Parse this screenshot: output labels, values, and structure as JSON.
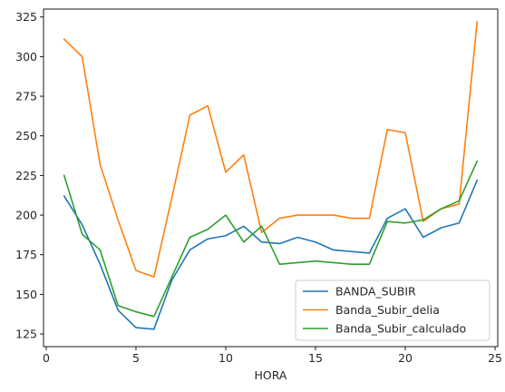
{
  "chart_data": {
    "type": "line",
    "xlabel": "HORA",
    "ylabel": "",
    "xlim": [
      -0.15,
      25.15
    ],
    "ylim": [
      117,
      330
    ],
    "xticks": [
      0,
      5,
      10,
      15,
      20,
      25
    ],
    "yticks": [
      125,
      150,
      175,
      200,
      225,
      250,
      275,
      300,
      325
    ],
    "grid": false,
    "legend_position": "lower-right",
    "x": [
      1,
      2,
      3,
      4,
      5,
      6,
      7,
      8,
      9,
      10,
      11,
      12,
      13,
      14,
      15,
      16,
      17,
      18,
      19,
      20,
      21,
      22,
      23,
      24
    ],
    "series": [
      {
        "name": "BANDA_SUBIR",
        "color": "#1f77b4",
        "values": [
          212,
          194,
          169,
          140,
          129,
          128,
          159,
          178,
          185,
          187,
          193,
          183,
          182,
          186,
          183,
          178,
          177,
          176,
          198,
          204,
          186,
          192,
          195,
          222
        ]
      },
      {
        "name": "Banda_Subir_delia",
        "color": "#ff7f0e",
        "values": [
          311,
          300,
          232,
          197,
          165,
          161,
          211,
          263,
          269,
          227,
          238,
          189,
          198,
          200,
          200,
          200,
          198,
          198,
          254,
          252,
          196,
          204,
          207,
          322
        ]
      },
      {
        "name": "Banda_Subir_calculado",
        "color": "#2ca02c",
        "values": [
          225,
          188,
          178,
          143,
          139,
          136,
          161,
          186,
          191,
          200,
          183,
          193,
          169,
          170,
          171,
          170,
          169,
          169,
          196,
          195,
          197,
          204,
          209,
          234
        ]
      }
    ]
  }
}
